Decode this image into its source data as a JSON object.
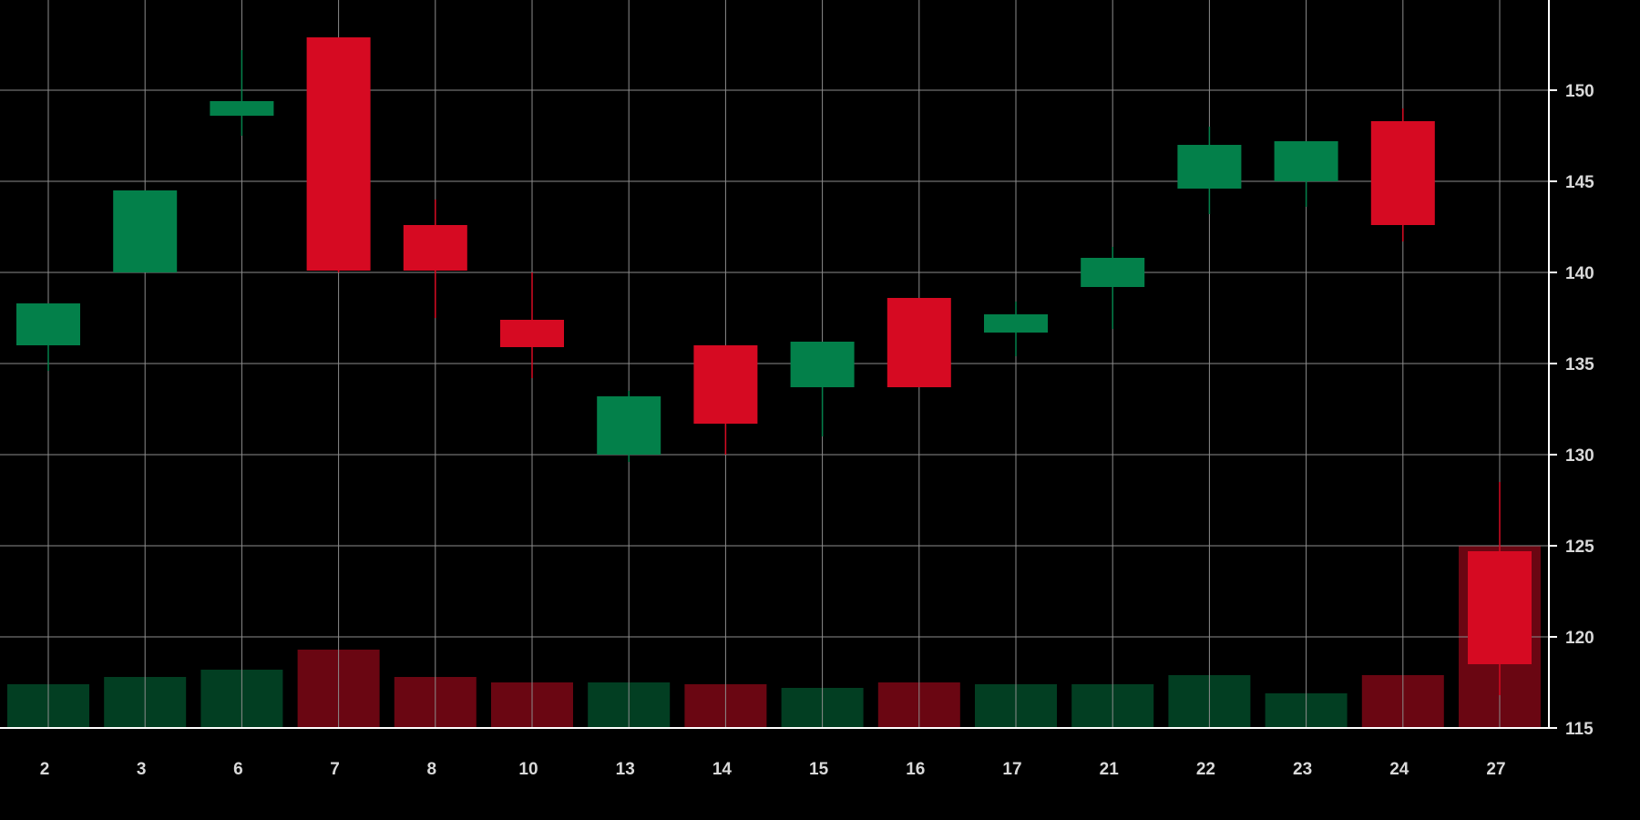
{
  "chart_data": {
    "type": "candlestick",
    "grid": true,
    "x_axis": {
      "tick_labels": [
        "2",
        "3",
        "6",
        "7",
        "8",
        "10",
        "13",
        "14",
        "15",
        "16",
        "17",
        "21",
        "22",
        "23",
        "24",
        "27"
      ]
    },
    "y_axis": {
      "position": "right",
      "range": [
        115,
        155
      ],
      "ticks": [
        115,
        120,
        125,
        130,
        135,
        140,
        145,
        150
      ],
      "tick_labels": [
        "115",
        "120",
        "125",
        "130",
        "135",
        "140",
        "145",
        "150"
      ]
    },
    "candles": [
      {
        "x": "2",
        "open": 136.0,
        "close": 138.3,
        "high": 138.3,
        "low": 134.6
      },
      {
        "x": "3",
        "open": 140.0,
        "close": 144.5,
        "high": 144.5,
        "low": 140.0
      },
      {
        "x": "6",
        "open": 148.6,
        "close": 149.4,
        "high": 152.2,
        "low": 147.5
      },
      {
        "x": "7",
        "open": 152.9,
        "close": 140.1,
        "high": 152.9,
        "low": 140.0
      },
      {
        "x": "8",
        "open": 142.6,
        "close": 140.1,
        "high": 144.0,
        "low": 137.5
      },
      {
        "x": "10",
        "open": 137.4,
        "close": 135.9,
        "high": 140.0,
        "low": 134.2
      },
      {
        "x": "13",
        "open": 130.0,
        "close": 133.2,
        "high": 133.5,
        "low": 129.6
      },
      {
        "x": "14",
        "open": 136.0,
        "close": 131.7,
        "high": 136.0,
        "low": 130.0
      },
      {
        "x": "15",
        "open": 133.7,
        "close": 136.2,
        "high": 136.2,
        "low": 131.0
      },
      {
        "x": "16",
        "open": 138.6,
        "close": 133.7,
        "high": 138.6,
        "low": 133.7
      },
      {
        "x": "17",
        "open": 136.7,
        "close": 137.7,
        "high": 138.4,
        "low": 135.4
      },
      {
        "x": "21",
        "open": 139.2,
        "close": 140.8,
        "high": 141.4,
        "low": 136.9
      },
      {
        "x": "22",
        "open": 144.6,
        "close": 147.0,
        "high": 148.0,
        "low": 143.2
      },
      {
        "x": "23",
        "open": 145.0,
        "close": 147.2,
        "high": 147.2,
        "low": 143.6
      },
      {
        "x": "24",
        "open": 148.3,
        "close": 142.6,
        "high": 149.0,
        "low": 141.7
      },
      {
        "x": "27",
        "open": 124.7,
        "close": 118.5,
        "high": 128.5,
        "low": 116.8
      }
    ],
    "volume": {
      "scale": "relative",
      "values": [
        2.4,
        2.8,
        3.2,
        4.3,
        2.8,
        2.5,
        2.5,
        2.4,
        2.2,
        2.5,
        2.4,
        2.4,
        2.9,
        1.9,
        2.9,
        10.0
      ]
    },
    "colors": {
      "background": "#000000",
      "grid": "#8c8c8c",
      "axis": "#ffffff",
      "up": "#03804a",
      "down": "#d60a22",
      "volume_up": "#023e22",
      "volume_down": "#6a0612",
      "tick_text": "#d9d9d9"
    }
  }
}
